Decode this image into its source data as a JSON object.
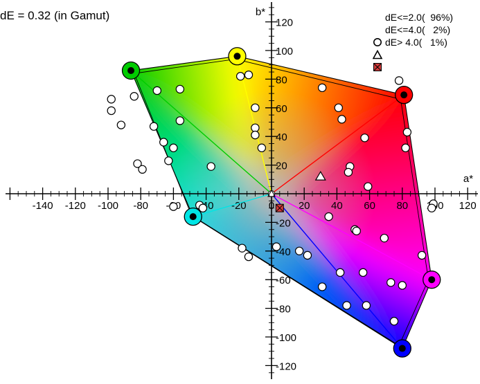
{
  "summary_text": "dE = 0.32 (in Gamut)",
  "legend": [
    {
      "symbol": "circle",
      "label": "dE<=2.0(  96%)"
    },
    {
      "symbol": "triangle",
      "label": "dE<=4.0(   2%)"
    },
    {
      "symbol": "square-x",
      "label": "dE> 4.0(   1%)"
    }
  ],
  "chart_data": {
    "type": "scatter",
    "xlabel": "a*",
    "ylabel": "b*",
    "xlim": [
      -165,
      125
    ],
    "ylim": [
      -126,
      128
    ],
    "x_ticks": [
      -140,
      -120,
      -100,
      -80,
      -60,
      -40,
      -20,
      0,
      20,
      40,
      60,
      80,
      100,
      120
    ],
    "y_ticks": [
      -120,
      -100,
      -80,
      -60,
      -40,
      -20,
      0,
      20,
      40,
      60,
      80,
      100,
      120
    ],
    "colors": {
      "red": "#ff0000",
      "yellow": "#ffff00",
      "green": "#00cc00",
      "cyan": "#00e5e5",
      "blue": "#0000ff",
      "magenta": "#ff00ff",
      "center": "#ffffff",
      "axis": "#000000",
      "error_marker": "#d23a3a"
    },
    "gamut_outer": [
      {
        "name": "yellow",
        "a": -21,
        "b": 96
      },
      {
        "name": "red",
        "a": 81,
        "b": 69
      },
      {
        "name": "magenta",
        "a": 98,
        "b": -60
      },
      {
        "name": "blue",
        "a": 80,
        "b": -108
      },
      {
        "name": "cyan",
        "a": -48,
        "b": -16
      },
      {
        "name": "green",
        "a": -86,
        "b": 86
      }
    ],
    "gamut_inner": [
      {
        "name": "yellow",
        "a": -22,
        "b": 94
      },
      {
        "name": "red",
        "a": 79,
        "b": 66
      },
      {
        "name": "magenta",
        "a": 96,
        "b": -60
      },
      {
        "name": "blue",
        "a": 78,
        "b": -106
      },
      {
        "name": "cyan",
        "a": -49,
        "b": -15
      },
      {
        "name": "green",
        "a": -84,
        "b": 84
      }
    ],
    "primaries": [
      {
        "name": "green",
        "a": -86,
        "b": 86
      },
      {
        "name": "yellow",
        "a": -21,
        "b": 96
      },
      {
        "name": "red",
        "a": 81,
        "b": 69
      },
      {
        "name": "magenta",
        "a": 98,
        "b": -60
      },
      {
        "name": "blue",
        "a": 80,
        "b": -108
      },
      {
        "name": "cyan",
        "a": -48,
        "b": -16
      }
    ],
    "points_circle": [
      [
        -98,
        66
      ],
      [
        -98,
        58
      ],
      [
        -92,
        48
      ],
      [
        -84,
        68
      ],
      [
        -70,
        72
      ],
      [
        -56,
        73
      ],
      [
        -72,
        47
      ],
      [
        -66,
        36
      ],
      [
        -60,
        32
      ],
      [
        -63,
        23
      ],
      [
        -82,
        21
      ],
      [
        -79,
        17
      ],
      [
        -56,
        51
      ],
      [
        -37,
        19
      ],
      [
        -60,
        -9
      ],
      [
        -44,
        -8
      ],
      [
        -42,
        -10
      ],
      [
        -19,
        82
      ],
      [
        -14,
        83
      ],
      [
        -10,
        60
      ],
      [
        -10,
        46
      ],
      [
        -10,
        41
      ],
      [
        -6,
        32
      ],
      [
        31,
        74
      ],
      [
        41,
        60
      ],
      [
        43,
        52
      ],
      [
        57,
        39
      ],
      [
        48,
        19
      ],
      [
        47,
        15
      ],
      [
        59,
        5
      ],
      [
        78,
        79
      ],
      [
        83,
        43
      ],
      [
        82,
        32
      ],
      [
        99,
        -7
      ],
      [
        98,
        -10
      ],
      [
        35,
        -16
      ],
      [
        51,
        -25
      ],
      [
        52,
        -26
      ],
      [
        69,
        -31
      ],
      [
        92,
        -43
      ],
      [
        3,
        -37
      ],
      [
        17,
        -40
      ],
      [
        22,
        -43
      ],
      [
        42,
        -55
      ],
      [
        56,
        -55
      ],
      [
        73,
        -62
      ],
      [
        80,
        -64
      ],
      [
        31,
        -65
      ],
      [
        46,
        -78
      ],
      [
        58,
        -78
      ],
      [
        75,
        -89
      ],
      [
        -18,
        -38
      ],
      [
        -14,
        -44
      ]
    ],
    "points_triangle": [
      [
        30,
        12
      ]
    ],
    "points_square_x": [
      [
        5,
        -10
      ]
    ]
  }
}
